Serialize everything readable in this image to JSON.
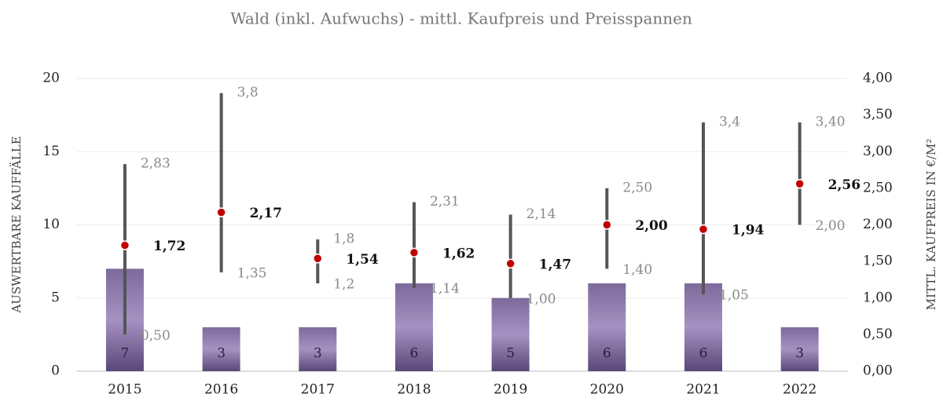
{
  "chart_data": {
    "type": "bar",
    "title": "Wald (inkl. Aufwuchs) - mittl. Kaufpreis und Preisspannen",
    "ylabel": "AUSWERTBARE KAUFFÄLLE",
    "y2label": "MITTL. KAUFPREIS IN €/M²",
    "categories": [
      "2015",
      "2016",
      "2017",
      "2018",
      "2019",
      "2020",
      "2021",
      "2022"
    ],
    "ylim": [
      0,
      20
    ],
    "yticks": [
      0,
      5,
      10,
      15,
      20
    ],
    "y2lim": [
      0,
      4
    ],
    "y2ticks": [
      {
        "value": 0,
        "label": "0,00"
      },
      {
        "value": 0.5,
        "label": "0,50"
      },
      {
        "value": 1,
        "label": "1,00"
      },
      {
        "value": 1.5,
        "label": "1,50"
      },
      {
        "value": 2,
        "label": "2,00"
      },
      {
        "value": 2.5,
        "label": "2,50"
      },
      {
        "value": 3,
        "label": "3,00"
      },
      {
        "value": 3.5,
        "label": "3,50"
      },
      {
        "value": 4,
        "label": "4,00"
      }
    ],
    "grid": true,
    "series": [
      {
        "type": "bar",
        "color": "#8a76a8",
        "values": [
          7,
          3,
          3,
          6,
          5,
          6,
          6,
          3
        ]
      },
      {
        "type": "point",
        "axis": "y2",
        "color": "#c00000",
        "values": [
          1.72,
          2.17,
          1.54,
          1.62,
          1.47,
          2.0,
          1.94,
          2.56
        ],
        "value_labels": [
          "1,72",
          "2,17",
          "1,54",
          "1,62",
          "1,47",
          "2,00",
          "1,94",
          "2,56"
        ],
        "high": [
          2.83,
          3.8,
          1.8,
          2.31,
          2.14,
          2.5,
          3.4,
          3.4
        ],
        "high_labels": [
          "2,83",
          "3,8",
          "1,8",
          "2,31",
          "2,14",
          "2,50",
          "3,4",
          "3,40"
        ],
        "low": [
          0.5,
          1.35,
          1.2,
          1.14,
          1.0,
          1.4,
          1.05,
          2.0
        ],
        "low_labels": [
          "0,50",
          "1,35",
          "1,2",
          "1,14",
          "1,00",
          "1,40",
          "1,05",
          "2,00"
        ],
        "range_color": "#555555"
      }
    ]
  }
}
